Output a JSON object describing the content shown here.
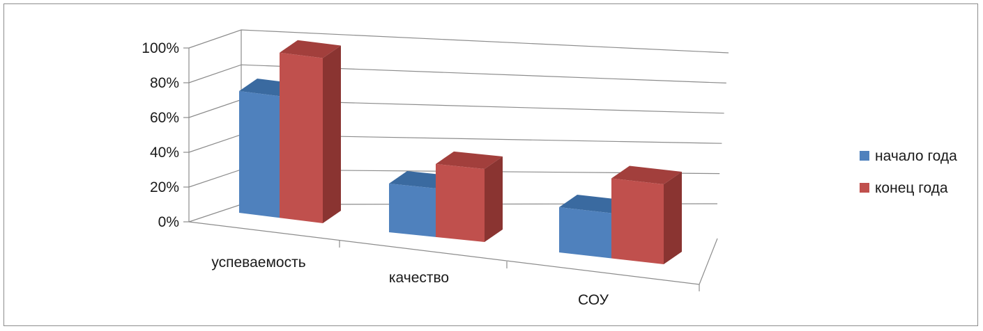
{
  "chart_data": {
    "type": "bar",
    "projection": "3d-perspective",
    "categories": [
      "успеваемость",
      "качество",
      "СОУ"
    ],
    "series": [
      {
        "name": "начало года",
        "values": [
          70,
          28,
          26
        ],
        "color": "#4f81bd",
        "top_color": "#3a6aa0",
        "side_color": "#34608f"
      },
      {
        "name": "конец года",
        "values": [
          95,
          42,
          46
        ],
        "color": "#c0504d",
        "top_color": "#a23f3c",
        "side_color": "#8a3431"
      }
    ],
    "ylim": [
      0,
      100
    ],
    "yticks": [
      "0%",
      "20%",
      "40%",
      "60%",
      "80%",
      "100%"
    ],
    "grid": true,
    "legend_position": "right",
    "title": "",
    "xlabel": "",
    "ylabel": ""
  }
}
